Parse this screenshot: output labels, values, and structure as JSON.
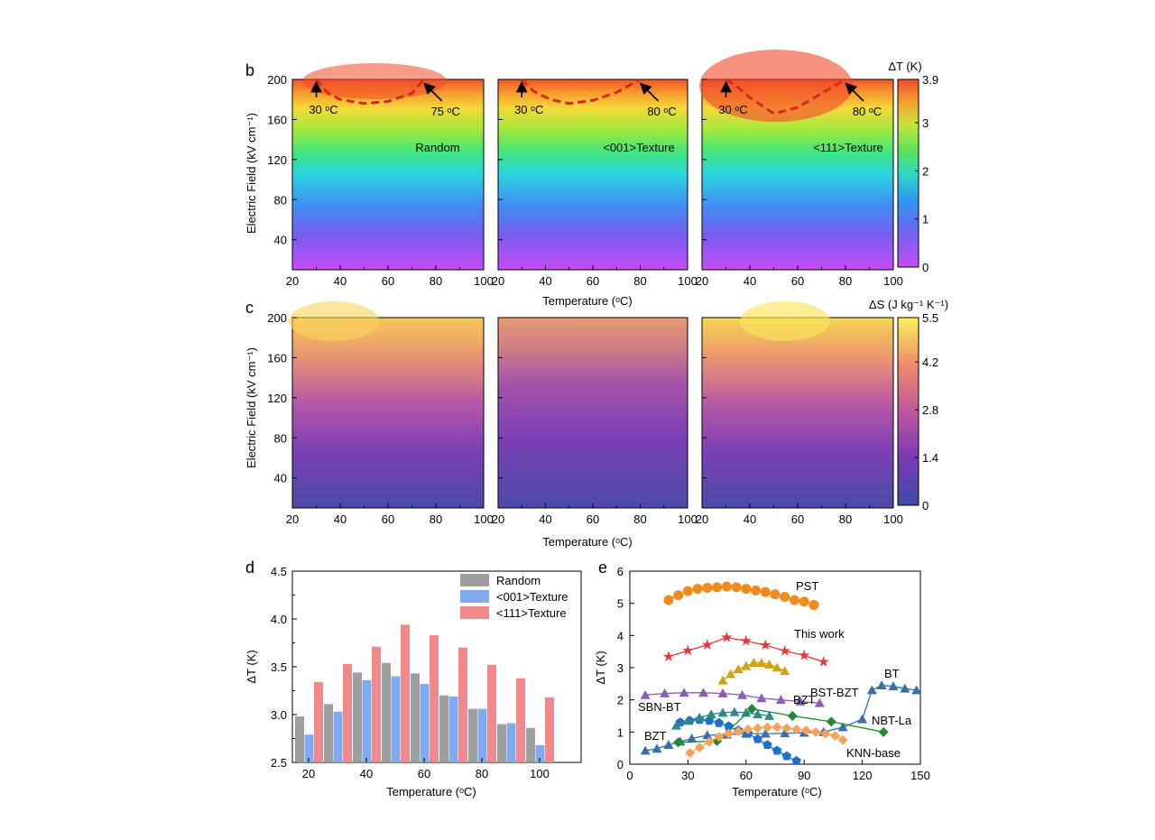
{
  "chart_data": [
    {
      "panel": "b",
      "type": "heatmap",
      "colorbar": {
        "title": "ΔT (K)",
        "min": 0,
        "max": 3.9,
        "ticks": [
          "0",
          "1",
          "2",
          "3",
          "3.9"
        ]
      },
      "ylabel": "Electric Field (kV cm⁻¹)",
      "xlabel": "Temperature (ᵒC)",
      "xlim": [
        20,
        100
      ],
      "ylim": [
        10,
        200
      ],
      "xticks": [
        "20",
        "40",
        "60",
        "80",
        "100"
      ],
      "yticks": [
        "40",
        "80",
        "120",
        "160",
        "200"
      ],
      "subplots": [
        {
          "label": "Random",
          "curve_T": [
            30,
            35,
            40,
            50,
            60,
            70,
            75
          ],
          "curve_E": [
            200,
            186,
            180,
            176,
            178,
            186,
            200
          ],
          "arrows": [
            "30 ᵒC",
            "75 ᵒC"
          ]
        },
        {
          "label": "<001>Texture",
          "curve_T": [
            30,
            35,
            42,
            50,
            60,
            70,
            80
          ],
          "curve_E": [
            200,
            188,
            180,
            176,
            179,
            187,
            200
          ],
          "arrows": [
            "30 ᵒC",
            "80 ᵒC"
          ]
        },
        {
          "label": "<111>Texture",
          "curve_T": [
            30,
            35,
            40,
            50,
            60,
            70,
            80
          ],
          "curve_E": [
            200,
            192,
            182,
            166,
            172,
            186,
            200
          ],
          "arrows": [
            "30 ᵒC",
            "80 ᵒC"
          ]
        }
      ]
    },
    {
      "panel": "c",
      "type": "heatmap",
      "colorbar": {
        "title": "ΔS (J kg⁻¹ K⁻¹)",
        "min": 0,
        "max": 5.5,
        "ticks": [
          "0",
          "1.4",
          "2.8",
          "4.2",
          "5.5"
        ]
      },
      "ylabel": "Electric Field (kV cm⁻¹)",
      "xlabel": "Temperature (ᵒC)",
      "xlim": [
        20,
        100
      ],
      "ylim": [
        10,
        200
      ],
      "xticks": [
        "20",
        "40",
        "60",
        "80",
        "100"
      ],
      "yticks": [
        "40",
        "80",
        "120",
        "160",
        "200"
      ]
    },
    {
      "panel": "d",
      "type": "bar",
      "categories": [
        20,
        30,
        40,
        50,
        60,
        70,
        80,
        90,
        100
      ],
      "xticks": [
        "20",
        "40",
        "60",
        "80",
        "100"
      ],
      "yticks": [
        "2.5",
        "3.0",
        "3.5",
        "4.0",
        "4.5"
      ],
      "series": [
        {
          "name": "Random",
          "color": "#9e9e9e",
          "values": [
            2.98,
            3.11,
            3.44,
            3.54,
            3.43,
            3.2,
            3.06,
            2.9,
            2.86
          ]
        },
        {
          "name": "<001>Texture",
          "color": "#7eaaf0",
          "values": [
            2.79,
            3.03,
            3.36,
            3.4,
            3.32,
            3.19,
            3.06,
            2.91,
            2.68
          ]
        },
        {
          "name": "<111>Texture",
          "color": "#f08a8a",
          "values": [
            3.34,
            3.53,
            3.71,
            3.94,
            3.83,
            3.7,
            3.52,
            3.38,
            3.18
          ]
        }
      ],
      "xlabel": "Temperature (ᵒC)",
      "ylabel": "ΔT (K)",
      "ylim": [
        2.5,
        4.5
      ],
      "legend": "top-right"
    },
    {
      "panel": "e",
      "type": "scatter",
      "xlabel": "Temperature (ᵒC)",
      "ylabel": "ΔT (K)",
      "xlim": [
        0,
        150
      ],
      "ylim": [
        0,
        6
      ],
      "xticks": [
        "0",
        "30",
        "60",
        "90",
        "120",
        "150"
      ],
      "yticks": [
        "0",
        "1",
        "2",
        "3",
        "4",
        "5",
        "6"
      ],
      "series": [
        {
          "name": "PST",
          "color": "#f28a1c",
          "marker": "circle",
          "x": [
            20,
            25,
            30,
            35,
            40,
            45,
            50,
            55,
            60,
            65,
            70,
            75,
            80,
            85,
            90,
            95
          ],
          "y": [
            5.1,
            5.25,
            5.38,
            5.45,
            5.48,
            5.5,
            5.52,
            5.5,
            5.45,
            5.4,
            5.35,
            5.28,
            5.2,
            5.1,
            5.05,
            4.95
          ]
        },
        {
          "name": "This work",
          "color": "#e8383d",
          "marker": "star",
          "x": [
            20,
            30,
            40,
            50,
            60,
            70,
            80,
            90,
            100
          ],
          "y": [
            3.34,
            3.53,
            3.71,
            3.94,
            3.83,
            3.7,
            3.52,
            3.38,
            3.18
          ]
        },
        {
          "name": "BZT",
          "color": "#d4a017",
          "marker": "triangle",
          "x": [
            48,
            52,
            56,
            60,
            64,
            68,
            72,
            76,
            80
          ],
          "y": [
            2.6,
            2.8,
            2.95,
            3.05,
            3.15,
            3.15,
            3.1,
            3.0,
            2.9
          ]
        },
        {
          "name": "BST-BZT",
          "color": "#8e5bb5",
          "marker": "triangle",
          "x": [
            8,
            18,
            28,
            38,
            48,
            58,
            68,
            78,
            88,
            98
          ],
          "y": [
            2.15,
            2.2,
            2.22,
            2.22,
            2.2,
            2.15,
            2.05,
            2.0,
            1.95,
            1.9
          ]
        },
        {
          "name": "BT",
          "color": "#3a6ea5",
          "marker": "triangle",
          "x": [
            8,
            14,
            20,
            26,
            32,
            40,
            50,
            60,
            70,
            80,
            90,
            100,
            110,
            120,
            125,
            130,
            136,
            142,
            148
          ],
          "y": [
            0.42,
            0.48,
            0.6,
            0.7,
            0.8,
            0.9,
            0.92,
            0.95,
            0.95,
            0.96,
            0.98,
            1.0,
            1.15,
            1.4,
            2.3,
            2.45,
            2.42,
            2.35,
            2.3
          ]
        },
        {
          "name": "SBN-BT",
          "color": "#1f6fd1",
          "marker": "pentagon",
          "x": [
            26,
            31,
            36,
            41,
            46,
            51,
            56,
            61,
            66,
            71,
            76,
            81,
            86
          ],
          "y": [
            1.3,
            1.35,
            1.38,
            1.35,
            1.28,
            1.18,
            1.05,
            0.95,
            0.78,
            0.6,
            0.42,
            0.25,
            0.1
          ]
        },
        {
          "name": "BZT",
          "color": "#2c8a8a",
          "marker": "triangle",
          "x": [
            24,
            30,
            36,
            42,
            48,
            54,
            60,
            66,
            72
          ],
          "y": [
            1.2,
            1.35,
            1.45,
            1.55,
            1.6,
            1.62,
            1.6,
            1.55,
            1.5
          ]
        },
        {
          "name": "NBT-La",
          "color": "#1e8a32",
          "marker": "diamond",
          "x": [
            25,
            45,
            63,
            84,
            104,
            131
          ],
          "y": [
            0.68,
            0.72,
            1.72,
            1.5,
            1.32,
            1.0
          ]
        },
        {
          "name": "KNN-base",
          "color": "#f5a25c",
          "marker": "diamond",
          "x": [
            31,
            36,
            41,
            46,
            51,
            56,
            61,
            66,
            71,
            76,
            81,
            86,
            91,
            96,
            101,
            106,
            110
          ],
          "y": [
            0.35,
            0.52,
            0.7,
            0.85,
            0.95,
            1.02,
            1.08,
            1.12,
            1.15,
            1.15,
            1.12,
            1.08,
            1.05,
            1.0,
            0.95,
            0.88,
            0.75
          ]
        }
      ]
    }
  ]
}
